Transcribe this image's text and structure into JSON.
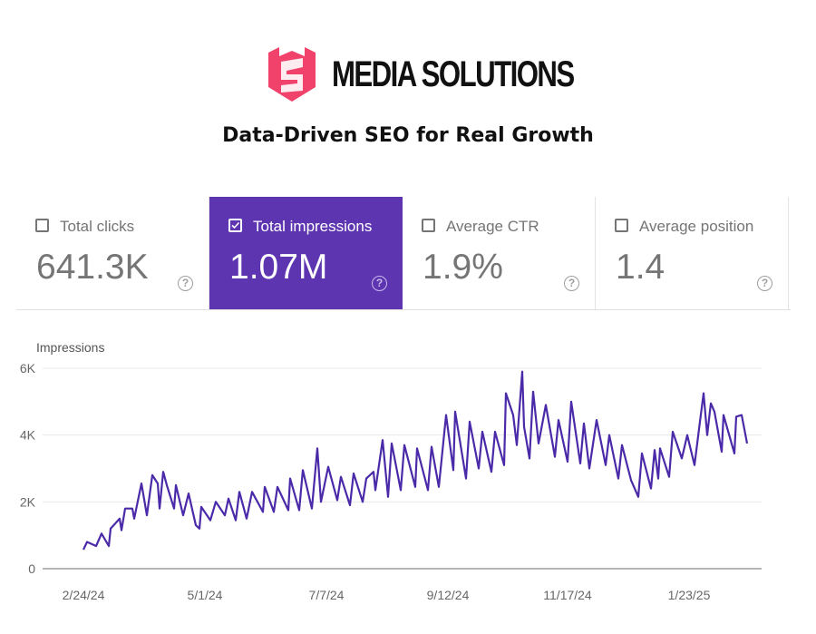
{
  "header": {
    "brand_name": "MEDIA SOLUTIONS",
    "tagline": "Data-Driven SEO for Real Growth",
    "logo_color": "#f0426b"
  },
  "metrics": [
    {
      "label": "Total clicks",
      "value": "641.3K",
      "checked": false
    },
    {
      "label": "Total impressions",
      "value": "1.07M",
      "checked": true
    },
    {
      "label": "Average CTR",
      "value": "1.9%",
      "checked": false
    },
    {
      "label": "Average position",
      "value": "1.4",
      "checked": false
    }
  ],
  "colors": {
    "accent": "#5e35b1",
    "line": "#4a2aa8",
    "grid": "#e8e8e8"
  },
  "chart_data": {
    "type": "line",
    "ylabel": "Impressions",
    "ylim": [
      0,
      6000
    ],
    "yticks": [
      "0",
      "2K",
      "4K",
      "6K"
    ],
    "ytick_values": [
      0,
      2000,
      4000,
      6000
    ],
    "xticks": [
      "2/24/24",
      "5/1/24",
      "7/7/24",
      "9/12/24",
      "11/17/24",
      "1/23/25"
    ],
    "grid": true,
    "series": [
      {
        "points": [
          [
            "2/24/24",
            570
          ],
          [
            "2/26/24",
            800
          ],
          [
            "3/2/24",
            680
          ],
          [
            "3/5/24",
            1050
          ],
          [
            "3/9/24",
            680
          ],
          [
            "3/10/24",
            1200
          ],
          [
            "3/15/24",
            1500
          ],
          [
            "3/16/24",
            1150
          ],
          [
            "3/18/24",
            1800
          ],
          [
            "3/22/24",
            1800
          ],
          [
            "3/23/24",
            1500
          ],
          [
            "3/27/24",
            2550
          ],
          [
            "3/30/24",
            1600
          ],
          [
            "4/2/24",
            2800
          ],
          [
            "4/5/24",
            2550
          ],
          [
            "4/6/24",
            1800
          ],
          [
            "4/8/24",
            2900
          ],
          [
            "4/10/24",
            2500
          ],
          [
            "4/14/24",
            1800
          ],
          [
            "4/15/24",
            2500
          ],
          [
            "4/19/24",
            1600
          ],
          [
            "4/22/24",
            2250
          ],
          [
            "4/26/24",
            1300
          ],
          [
            "4/28/24",
            1200
          ],
          [
            "4/29/24",
            1850
          ],
          [
            "5/4/24",
            1450
          ],
          [
            "5/7/24",
            2000
          ],
          [
            "5/12/24",
            1600
          ],
          [
            "5/14/24",
            2100
          ],
          [
            "5/18/24",
            1450
          ],
          [
            "5/20/24",
            2300
          ],
          [
            "5/24/24",
            1500
          ],
          [
            "5/27/24",
            2300
          ],
          [
            "6/2/24",
            1700
          ],
          [
            "6/3/24",
            2450
          ],
          [
            "6/8/24",
            1700
          ],
          [
            "6/10/24",
            2450
          ],
          [
            "6/16/24",
            1750
          ],
          [
            "6/17/24",
            2700
          ],
          [
            "6/22/24",
            1750
          ],
          [
            "6/24/24",
            2950
          ],
          [
            "6/29/24",
            1800
          ],
          [
            "7/2/24",
            3600
          ],
          [
            "7/4/24",
            2000
          ],
          [
            "7/8/24",
            3050
          ],
          [
            "7/13/24",
            2050
          ],
          [
            "7/15/24",
            2750
          ],
          [
            "7/20/24",
            1900
          ],
          [
            "7/22/24",
            2850
          ],
          [
            "7/27/24",
            2000
          ],
          [
            "7/29/24",
            2700
          ],
          [
            "8/2/24",
            2900
          ],
          [
            "8/3/24",
            2350
          ],
          [
            "8/7/24",
            3850
          ],
          [
            "8/10/24",
            2150
          ],
          [
            "8/12/24",
            3750
          ],
          [
            "8/17/24",
            2350
          ],
          [
            "8/19/24",
            3700
          ],
          [
            "8/25/24",
            2450
          ],
          [
            "8/26/24",
            3600
          ],
          [
            "9/1/24",
            2350
          ],
          [
            "9/3/24",
            3650
          ],
          [
            "9/7/24",
            2450
          ],
          [
            "9/11/24",
            4600
          ],
          [
            "9/15/24",
            2950
          ],
          [
            "9/16/24",
            4700
          ],
          [
            "9/22/24",
            2700
          ],
          [
            "9/24/24",
            4400
          ],
          [
            "9/29/24",
            3000
          ],
          [
            "10/1/24",
            4100
          ],
          [
            "10/6/24",
            2900
          ],
          [
            "10/8/24",
            4100
          ],
          [
            "10/13/24",
            3100
          ],
          [
            "10/14/24",
            5250
          ],
          [
            "10/18/24",
            4600
          ],
          [
            "10/20/24",
            3700
          ],
          [
            "10/23/24",
            5900
          ],
          [
            "10/24/24",
            4250
          ],
          [
            "10/27/24",
            3300
          ],
          [
            "10/29/24",
            5300
          ],
          [
            "11/1/24",
            3750
          ],
          [
            "11/5/24",
            4900
          ],
          [
            "11/10/24",
            3350
          ],
          [
            "11/12/24",
            4450
          ],
          [
            "11/17/24",
            3200
          ],
          [
            "11/19/24",
            5000
          ],
          [
            "11/24/24",
            3150
          ],
          [
            "11/26/24",
            4350
          ],
          [
            "11/29/24",
            3000
          ],
          [
            "12/3/24",
            4450
          ],
          [
            "12/8/24",
            3100
          ],
          [
            "12/10/24",
            4000
          ],
          [
            "12/15/24",
            2700
          ],
          [
            "12/17/24",
            3700
          ],
          [
            "12/22/24",
            2650
          ],
          [
            "12/26/24",
            2150
          ],
          [
            "12/28/24",
            3450
          ],
          [
            "1/2/25",
            2400
          ],
          [
            "1/4/25",
            3550
          ],
          [
            "1/6/25",
            2700
          ],
          [
            "1/7/25",
            3600
          ],
          [
            "1/12/25",
            2750
          ],
          [
            "1/14/25",
            4100
          ],
          [
            "1/19/25",
            3300
          ],
          [
            "1/22/25",
            4000
          ],
          [
            "1/26/25",
            3100
          ],
          [
            "1/29/25",
            4400
          ],
          [
            "1/31/25",
            5250
          ],
          [
            "2/2/25",
            4000
          ],
          [
            "2/4/25",
            4950
          ],
          [
            "2/6/25",
            4700
          ],
          [
            "2/10/25",
            3500
          ],
          [
            "2/11/25",
            4600
          ],
          [
            "2/17/25",
            3450
          ],
          [
            "2/18/25",
            4550
          ],
          [
            "2/21/25",
            4600
          ],
          [
            "2/24/25",
            3750
          ]
        ]
      }
    ]
  }
}
